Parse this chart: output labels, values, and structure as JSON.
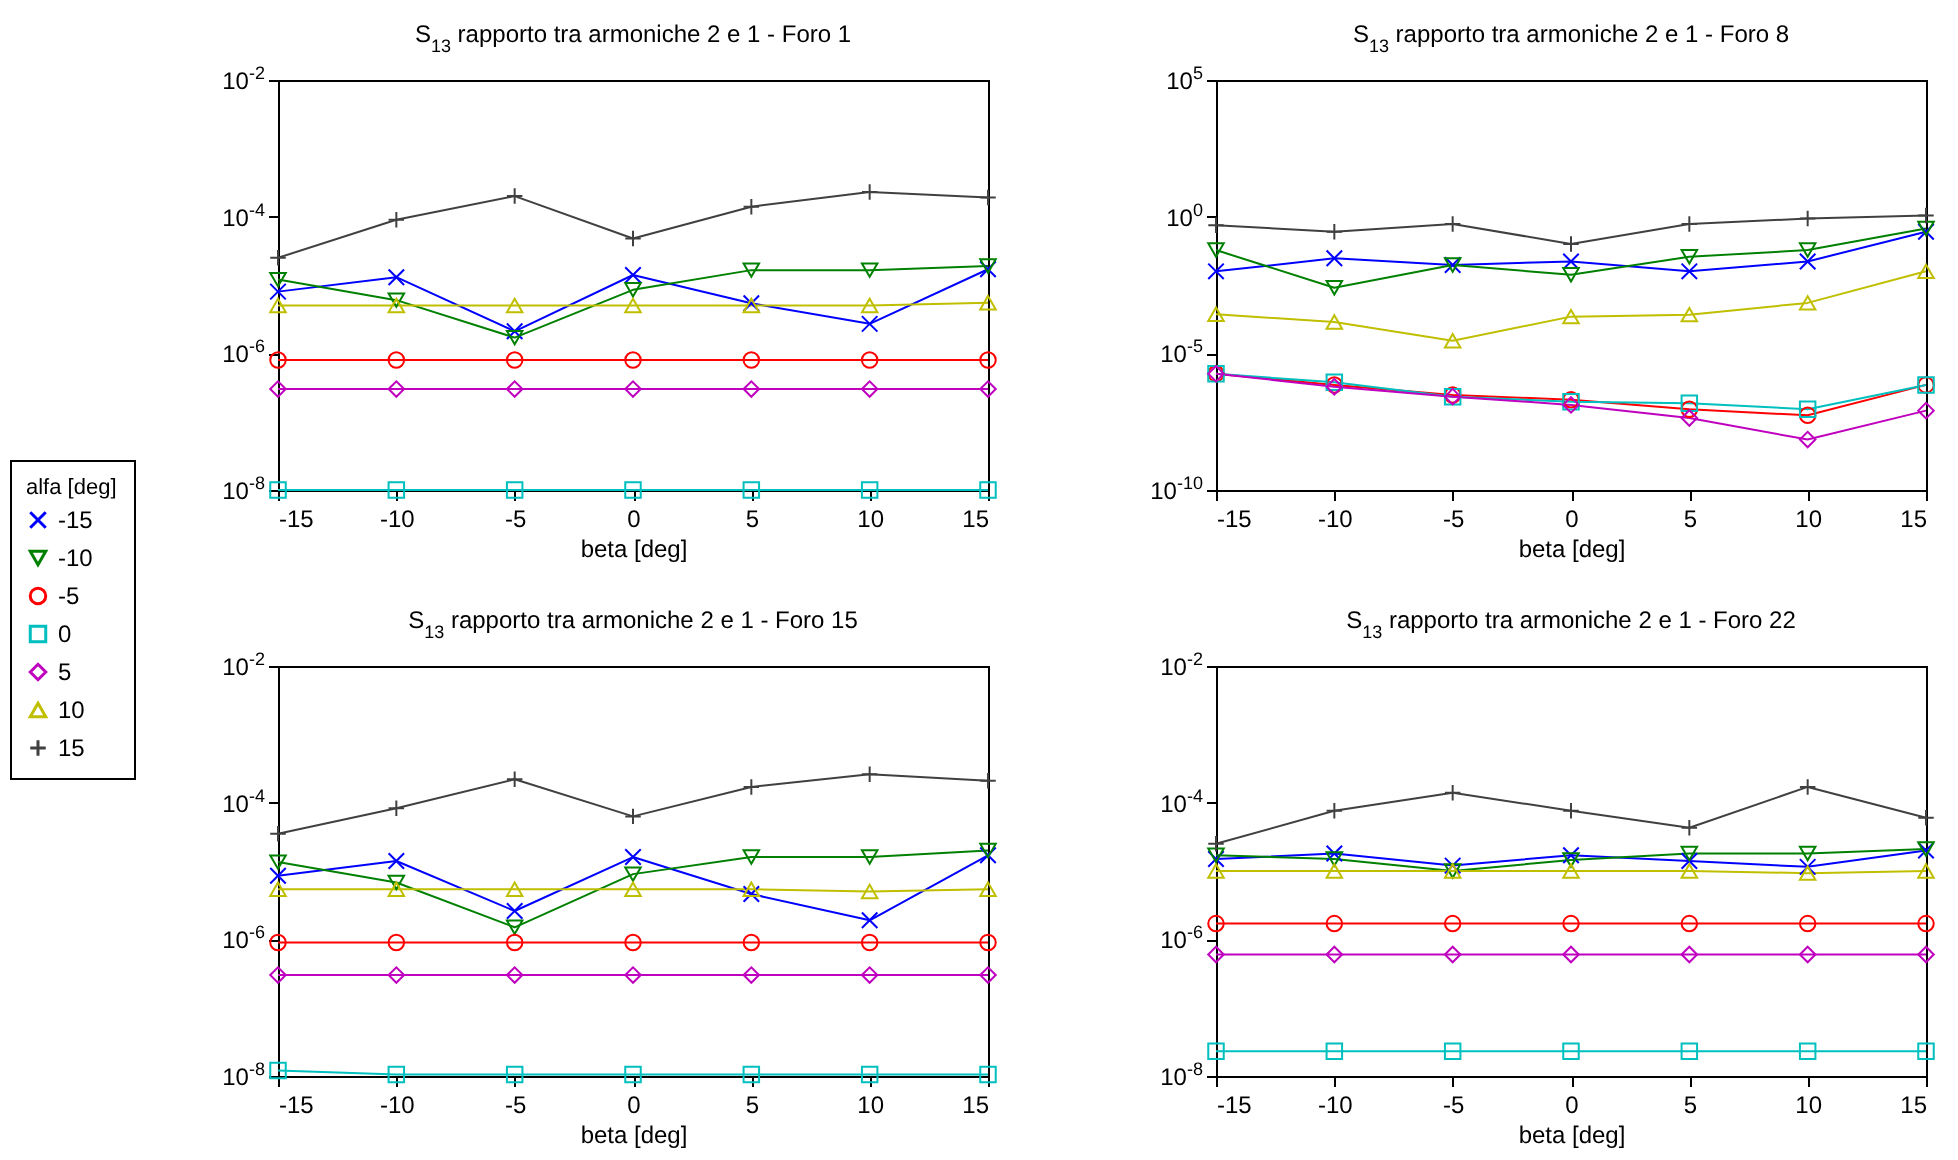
{
  "chart_data": [
    {
      "type": "line",
      "title": "S$_{13}$ rapporto tra armoniche 2 e 1 - Foro 1",
      "xlabel": "beta [deg]",
      "legend_title": "alfa [deg]",
      "legend": "left",
      "log": "y",
      "grid": false,
      "x": [
        -15,
        -10,
        -5,
        0,
        5,
        10,
        15
      ],
      "xlim": [
        -15,
        15
      ],
      "xticks": [
        -15,
        -10,
        -5,
        0,
        5,
        10,
        15
      ],
      "ylim": [
        1e-08,
        0.01
      ],
      "yticks": [
        {
          "value": 1e-08,
          "label": "10$^{-8}$"
        },
        {
          "value": 1e-06,
          "label": "10$^{-6}$"
        },
        {
          "value": 0.0001,
          "label": "10$^{-4}$"
        },
        {
          "value": 0.01,
          "label": "10$^{-2}$"
        }
      ],
      "series": [
        {
          "name": "-15",
          "color": "#0000ff",
          "marker": "cross",
          "values": [
            8e-06,
            1.3e-05,
            2.1e-06,
            1.4e-05,
            5.4e-06,
            2.7e-06,
            1.7e-05
          ]
        },
        {
          "name": "-10",
          "color": "#008000",
          "marker": "triangle-down",
          "values": [
            1.2e-05,
            6e-06,
            1.7e-06,
            8.5e-06,
            1.65e-05,
            1.65e-05,
            1.9e-05
          ]
        },
        {
          "name": "-5",
          "color": "#ff0000",
          "marker": "circle",
          "values": [
            8e-07,
            8e-07,
            8e-07,
            8e-07,
            8e-07,
            8e-07,
            8e-07
          ]
        },
        {
          "name": "0",
          "color": "#00bfbf",
          "marker": "square",
          "values": [
            1e-08,
            1e-08,
            1e-08,
            1e-08,
            1e-08,
            1e-08,
            1e-08
          ]
        },
        {
          "name": "5",
          "color": "#bf00bf",
          "marker": "diamond",
          "values": [
            3e-07,
            3e-07,
            3e-07,
            3e-07,
            3e-07,
            3e-07,
            3e-07
          ]
        },
        {
          "name": "10",
          "color": "#bfbf00",
          "marker": "triangle",
          "values": [
            5e-06,
            5e-06,
            5e-06,
            5e-06,
            5e-06,
            5e-06,
            5.5e-06
          ]
        },
        {
          "name": "15",
          "color": "#404040",
          "marker": "plus",
          "values": [
            2.5e-05,
            9e-05,
            0.0002,
            4.8e-05,
            0.00014,
            0.00023,
            0.00019
          ]
        }
      ]
    },
    {
      "type": "line",
      "title": "S$_{13}$ rapporto tra armoniche 2 e 1 - Foro 8",
      "xlabel": "beta [deg]",
      "log": "y",
      "grid": false,
      "x": [
        -15,
        -10,
        -5,
        0,
        5,
        10,
        15
      ],
      "xlim": [
        -15,
        15
      ],
      "xticks": [
        -15,
        -10,
        -5,
        0,
        5,
        10,
        15
      ],
      "ylim": [
        1e-10,
        100000
      ],
      "yticks": [
        {
          "value": 1e-10,
          "label": "10$^{-10}$"
        },
        {
          "value": 1e-05,
          "label": "10$^{-5}$"
        },
        {
          "value": 1,
          "label": "10$^{0}$"
        },
        {
          "value": 100000,
          "label": "10$^{5}$"
        }
      ],
      "series": [
        {
          "name": "-15",
          "color": "#0000ff",
          "marker": "cross",
          "values": [
            0.01,
            0.03,
            0.017,
            0.023,
            0.01,
            0.023,
            0.28
          ]
        },
        {
          "name": "-10",
          "color": "#008000",
          "marker": "triangle-down",
          "values": [
            0.06,
            0.0025,
            0.017,
            0.0075,
            0.034,
            0.06,
            0.37
          ]
        },
        {
          "name": "-5",
          "color": "#ff0000",
          "marker": "circle",
          "values": [
            1.8e-06,
            7e-07,
            3e-07,
            2e-07,
            9e-08,
            5.4e-08,
            7e-07
          ]
        },
        {
          "name": "0",
          "color": "#00bfbf",
          "marker": "square",
          "values": [
            1.8e-06,
            8.7e-07,
            2.6e-07,
            1.7e-07,
            1.5e-07,
            9e-08,
            7e-07
          ]
        },
        {
          "name": "5",
          "color": "#bf00bf",
          "marker": "diamond",
          "values": [
            1.8e-06,
            6e-07,
            2.6e-07,
            1.3e-07,
            4.3e-08,
            7e-09,
            8e-08
          ]
        },
        {
          "name": "10",
          "color": "#bfbf00",
          "marker": "triangle",
          "values": [
            0.00027,
            0.00014,
            2.9e-05,
            0.00022,
            0.00026,
            0.0007,
            0.01
          ]
        },
        {
          "name": "15",
          "color": "#404040",
          "marker": "plus",
          "values": [
            0.49,
            0.28,
            0.54,
            0.1,
            0.54,
            0.85,
            1.1
          ]
        }
      ]
    },
    {
      "type": "line",
      "title": "S$_{13}$ rapporto tra armoniche 2 e 1 - Foro 15",
      "xlabel": "beta [deg]",
      "log": "y",
      "grid": false,
      "x": [
        -15,
        -10,
        -5,
        0,
        5,
        10,
        15
      ],
      "xlim": [
        -15,
        15
      ],
      "xticks": [
        -15,
        -10,
        -5,
        0,
        5,
        10,
        15
      ],
      "ylim": [
        1e-08,
        0.01
      ],
      "yticks": [
        {
          "value": 1e-08,
          "label": "10$^{-8}$"
        },
        {
          "value": 1e-06,
          "label": "10$^{-6}$"
        },
        {
          "value": 0.0001,
          "label": "10$^{-4}$"
        },
        {
          "value": 0.01,
          "label": "10$^{-2}$"
        }
      ],
      "series": [
        {
          "name": "-15",
          "color": "#0000ff",
          "marker": "cross",
          "values": [
            8.5e-06,
            1.4e-05,
            2.6e-06,
            1.6e-05,
            4.6e-06,
            1.9e-06,
            1.7e-05
          ]
        },
        {
          "name": "-10",
          "color": "#008000",
          "marker": "triangle-down",
          "values": [
            1.35e-05,
            6.8e-06,
            1.5e-06,
            9e-06,
            1.6e-05,
            1.6e-05,
            2e-05
          ]
        },
        {
          "name": "-5",
          "color": "#ff0000",
          "marker": "circle",
          "values": [
            9e-07,
            9e-07,
            9e-07,
            9e-07,
            9e-07,
            9e-07,
            9e-07
          ]
        },
        {
          "name": "0",
          "color": "#00bfbf",
          "marker": "square",
          "values": [
            1.2e-08,
            1.05e-08,
            1.05e-08,
            1.05e-08,
            1.05e-08,
            1.05e-08,
            1.05e-08
          ]
        },
        {
          "name": "5",
          "color": "#bf00bf",
          "marker": "diamond",
          "values": [
            3e-07,
            3e-07,
            3e-07,
            3e-07,
            3e-07,
            3e-07,
            3e-07
          ]
        },
        {
          "name": "10",
          "color": "#bfbf00",
          "marker": "triangle",
          "values": [
            5.4e-06,
            5.4e-06,
            5.4e-06,
            5.4e-06,
            5.4e-06,
            5e-06,
            5.4e-06
          ]
        },
        {
          "name": "15",
          "color": "#404040",
          "marker": "plus",
          "values": [
            3.5e-05,
            8.3e-05,
            0.00022,
            6.3e-05,
            0.00017,
            0.00026,
            0.00021
          ]
        }
      ]
    },
    {
      "type": "line",
      "title": "S$_{13}$ rapporto tra armoniche 2 e 1 - Foro 22",
      "xlabel": "beta [deg]",
      "log": "y",
      "grid": false,
      "x": [
        -15,
        -10,
        -5,
        0,
        5,
        10,
        15
      ],
      "xlim": [
        -15,
        15
      ],
      "xticks": [
        -15,
        -10,
        -5,
        0,
        5,
        10,
        15
      ],
      "ylim": [
        1e-08,
        0.01
      ],
      "yticks": [
        {
          "value": 1e-08,
          "label": "10$^{-8}$"
        },
        {
          "value": 1e-06,
          "label": "10$^{-6}$"
        },
        {
          "value": 0.0001,
          "label": "10$^{-4}$"
        },
        {
          "value": 0.01,
          "label": "10$^{-2}$"
        }
      ],
      "series": [
        {
          "name": "-15",
          "color": "#0000ff",
          "marker": "cross",
          "values": [
            1.5e-05,
            1.8e-05,
            1.2e-05,
            1.7e-05,
            1.4e-05,
            1.15e-05,
            2e-05
          ]
        },
        {
          "name": "-10",
          "color": "#008000",
          "marker": "triangle-down",
          "values": [
            1.7e-05,
            1.5e-05,
            1e-05,
            1.45e-05,
            1.8e-05,
            1.8e-05,
            2.1e-05
          ]
        },
        {
          "name": "-5",
          "color": "#ff0000",
          "marker": "circle",
          "values": [
            1.7e-06,
            1.7e-06,
            1.7e-06,
            1.7e-06,
            1.7e-06,
            1.7e-06,
            1.7e-06
          ]
        },
        {
          "name": "0",
          "color": "#00bfbf",
          "marker": "square",
          "values": [
            2.3e-08,
            2.3e-08,
            2.3e-08,
            2.3e-08,
            2.3e-08,
            2.3e-08,
            2.3e-08
          ]
        },
        {
          "name": "5",
          "color": "#bf00bf",
          "marker": "diamond",
          "values": [
            6e-07,
            6e-07,
            6e-07,
            6e-07,
            6e-07,
            6e-07,
            6e-07
          ]
        },
        {
          "name": "10",
          "color": "#bfbf00",
          "marker": "triangle",
          "values": [
            1e-05,
            1e-05,
            1e-05,
            1e-05,
            1e-05,
            9.3e-06,
            1e-05
          ]
        },
        {
          "name": "15",
          "color": "#404040",
          "marker": "plus",
          "values": [
            2.5e-05,
            7.6e-05,
            0.00014,
            7.6e-05,
            4.3e-05,
            0.00017,
            6e-05
          ]
        }
      ]
    }
  ]
}
